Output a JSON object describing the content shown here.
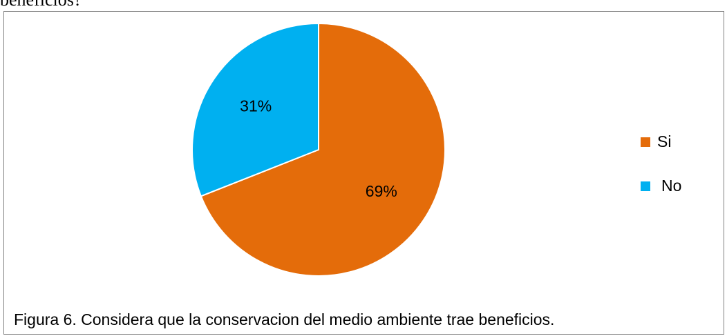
{
  "page_text": "beneficios?",
  "chart_data": {
    "type": "pie",
    "categories": [
      "Si",
      "No"
    ],
    "values": [
      69,
      31
    ],
    "value_labels": [
      "69%",
      "31%"
    ],
    "colors": [
      "#e46c0a",
      "#00b0f0"
    ],
    "caption": "Figura 6. Considera que la conservacion del medio ambiente trae beneficios."
  }
}
